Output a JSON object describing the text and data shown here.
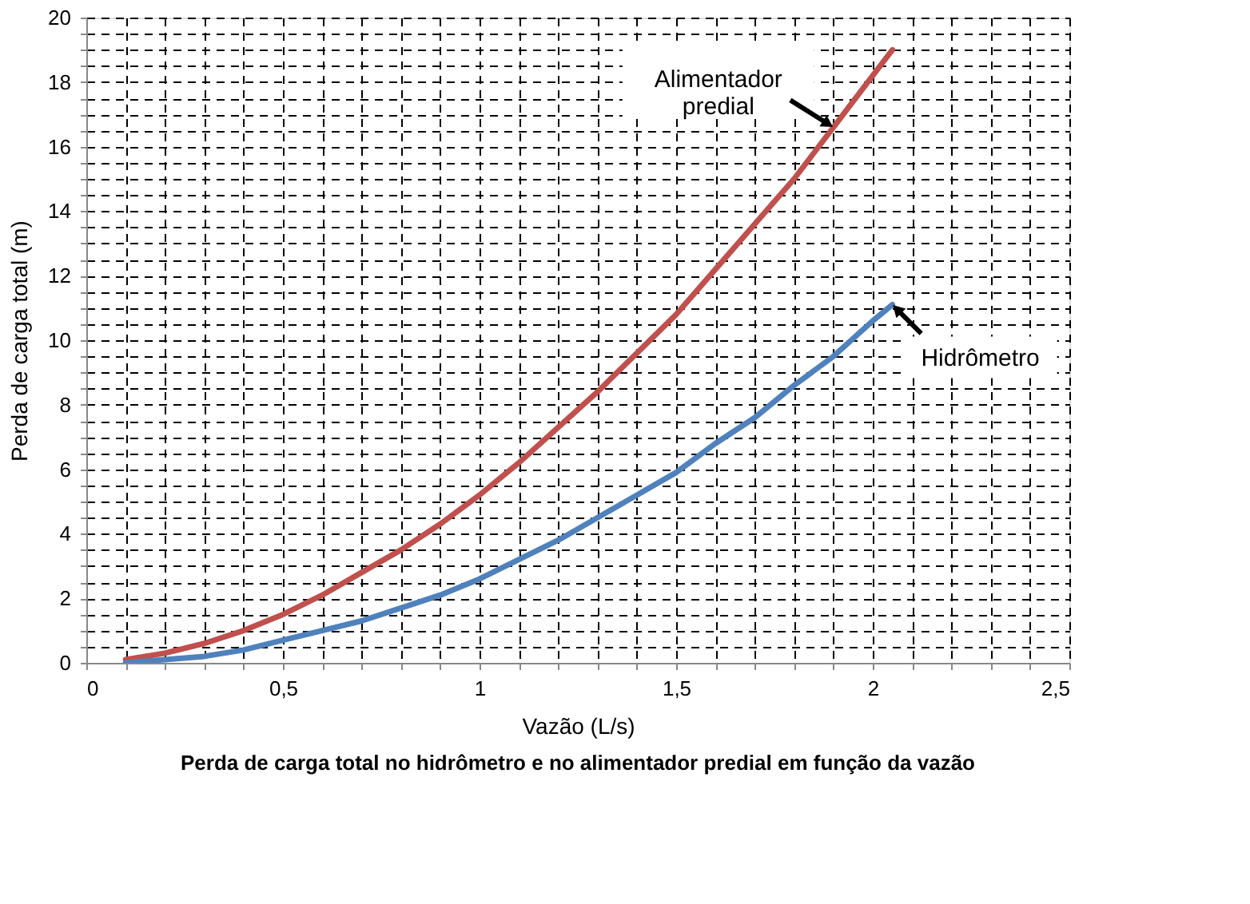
{
  "chart_data": {
    "type": "line",
    "title": "Perda de carga total no hidrômetro e no alimentador predial em função da vazão",
    "xlabel": "Vazão (L/s)",
    "ylabel": "Perda de carga total (m)",
    "x": [
      0.1,
      0.2,
      0.3,
      0.4,
      0.5,
      0.6,
      0.7,
      0.8,
      0.9,
      1.0,
      1.1,
      1.2,
      1.3,
      1.4,
      1.5,
      1.6,
      1.7,
      1.8,
      1.9,
      2.0,
      2.05
    ],
    "series": [
      {
        "name": "Alimentador\npredial",
        "color": "#c0504d",
        "values": [
          0.1,
          0.3,
          0.6,
          1.0,
          1.5,
          2.1,
          2.8,
          3.5,
          4.3,
          5.2,
          6.2,
          7.3,
          8.4,
          9.6,
          10.8,
          12.2,
          13.6,
          15.0,
          16.6,
          18.2,
          19.0
        ]
      },
      {
        "name": "Hidrômetro",
        "color": "#4f81bd",
        "values": [
          0.0,
          0.1,
          0.2,
          0.4,
          0.7,
          1.0,
          1.3,
          1.7,
          2.1,
          2.6,
          3.2,
          3.8,
          4.5,
          5.2,
          5.9,
          6.8,
          7.6,
          8.6,
          9.5,
          10.6,
          11.1
        ]
      }
    ],
    "xlim": [
      0,
      2.5
    ],
    "ylim": [
      0,
      20
    ],
    "xticks": [
      0,
      {
        "value": 0.1,
        "label": null
      },
      {
        "value": 0.2,
        "label": null
      },
      {
        "value": 0.3,
        "label": null
      },
      {
        "value": 0.4,
        "label": null
      },
      {
        "value": 0.5,
        "label": "0,5"
      },
      {
        "value": 0.6,
        "label": null
      },
      {
        "value": 0.7,
        "label": null
      },
      {
        "value": 0.8,
        "label": null
      },
      {
        "value": 0.9,
        "label": null
      },
      1,
      {
        "value": 1.1,
        "label": null
      },
      {
        "value": 1.2,
        "label": null
      },
      {
        "value": 1.3,
        "label": null
      },
      {
        "value": 1.4,
        "label": null
      },
      {
        "value": 1.5,
        "label": "1,5"
      },
      {
        "value": 1.6,
        "label": null
      },
      {
        "value": 1.7,
        "label": null
      },
      {
        "value": 1.8,
        "label": null
      },
      {
        "value": 1.9,
        "label": null
      },
      2,
      {
        "value": 2.1,
        "label": null
      },
      {
        "value": 2.2,
        "label": null
      },
      {
        "value": 2.3,
        "label": null
      },
      {
        "value": 2.4,
        "label": null
      },
      {
        "value": 2.5,
        "label": "2,5"
      }
    ],
    "yticks": [
      0,
      {
        "value": 0.5,
        "label": null
      },
      {
        "value": 1,
        "label": null
      },
      {
        "value": 1.5,
        "label": null
      },
      2,
      {
        "value": 2.5,
        "label": null
      },
      {
        "value": 3,
        "label": null
      },
      {
        "value": 3.5,
        "label": null
      },
      4,
      {
        "value": 4.5,
        "label": null
      },
      {
        "value": 5,
        "label": null
      },
      {
        "value": 5.5,
        "label": null
      },
      6,
      {
        "value": 6.5,
        "label": null
      },
      {
        "value": 7,
        "label": null
      },
      {
        "value": 7.5,
        "label": null
      },
      8,
      {
        "value": 8.5,
        "label": null
      },
      {
        "value": 9,
        "label": null
      },
      {
        "value": 9.5,
        "label": null
      },
      10,
      {
        "value": 10.5,
        "label": null
      },
      {
        "value": 11,
        "label": null
      },
      {
        "value": 11.5,
        "label": null
      },
      12,
      {
        "value": 12.5,
        "label": null
      },
      {
        "value": 13,
        "label": null
      },
      {
        "value": 13.5,
        "label": null
      },
      14,
      {
        "value": 14.5,
        "label": null
      },
      {
        "value": 15,
        "label": null
      },
      {
        "value": 15.5,
        "label": null
      },
      16,
      {
        "value": 16.5,
        "label": null
      },
      {
        "value": 17,
        "label": null
      },
      {
        "value": 17.5,
        "label": null
      },
      18,
      {
        "value": 18.5,
        "label": null
      },
      {
        "value": 19,
        "label": null
      },
      {
        "value": 19.5,
        "label": null
      },
      20
    ],
    "grid": true,
    "legend": false,
    "marker": "none",
    "line_style": "solid"
  }
}
